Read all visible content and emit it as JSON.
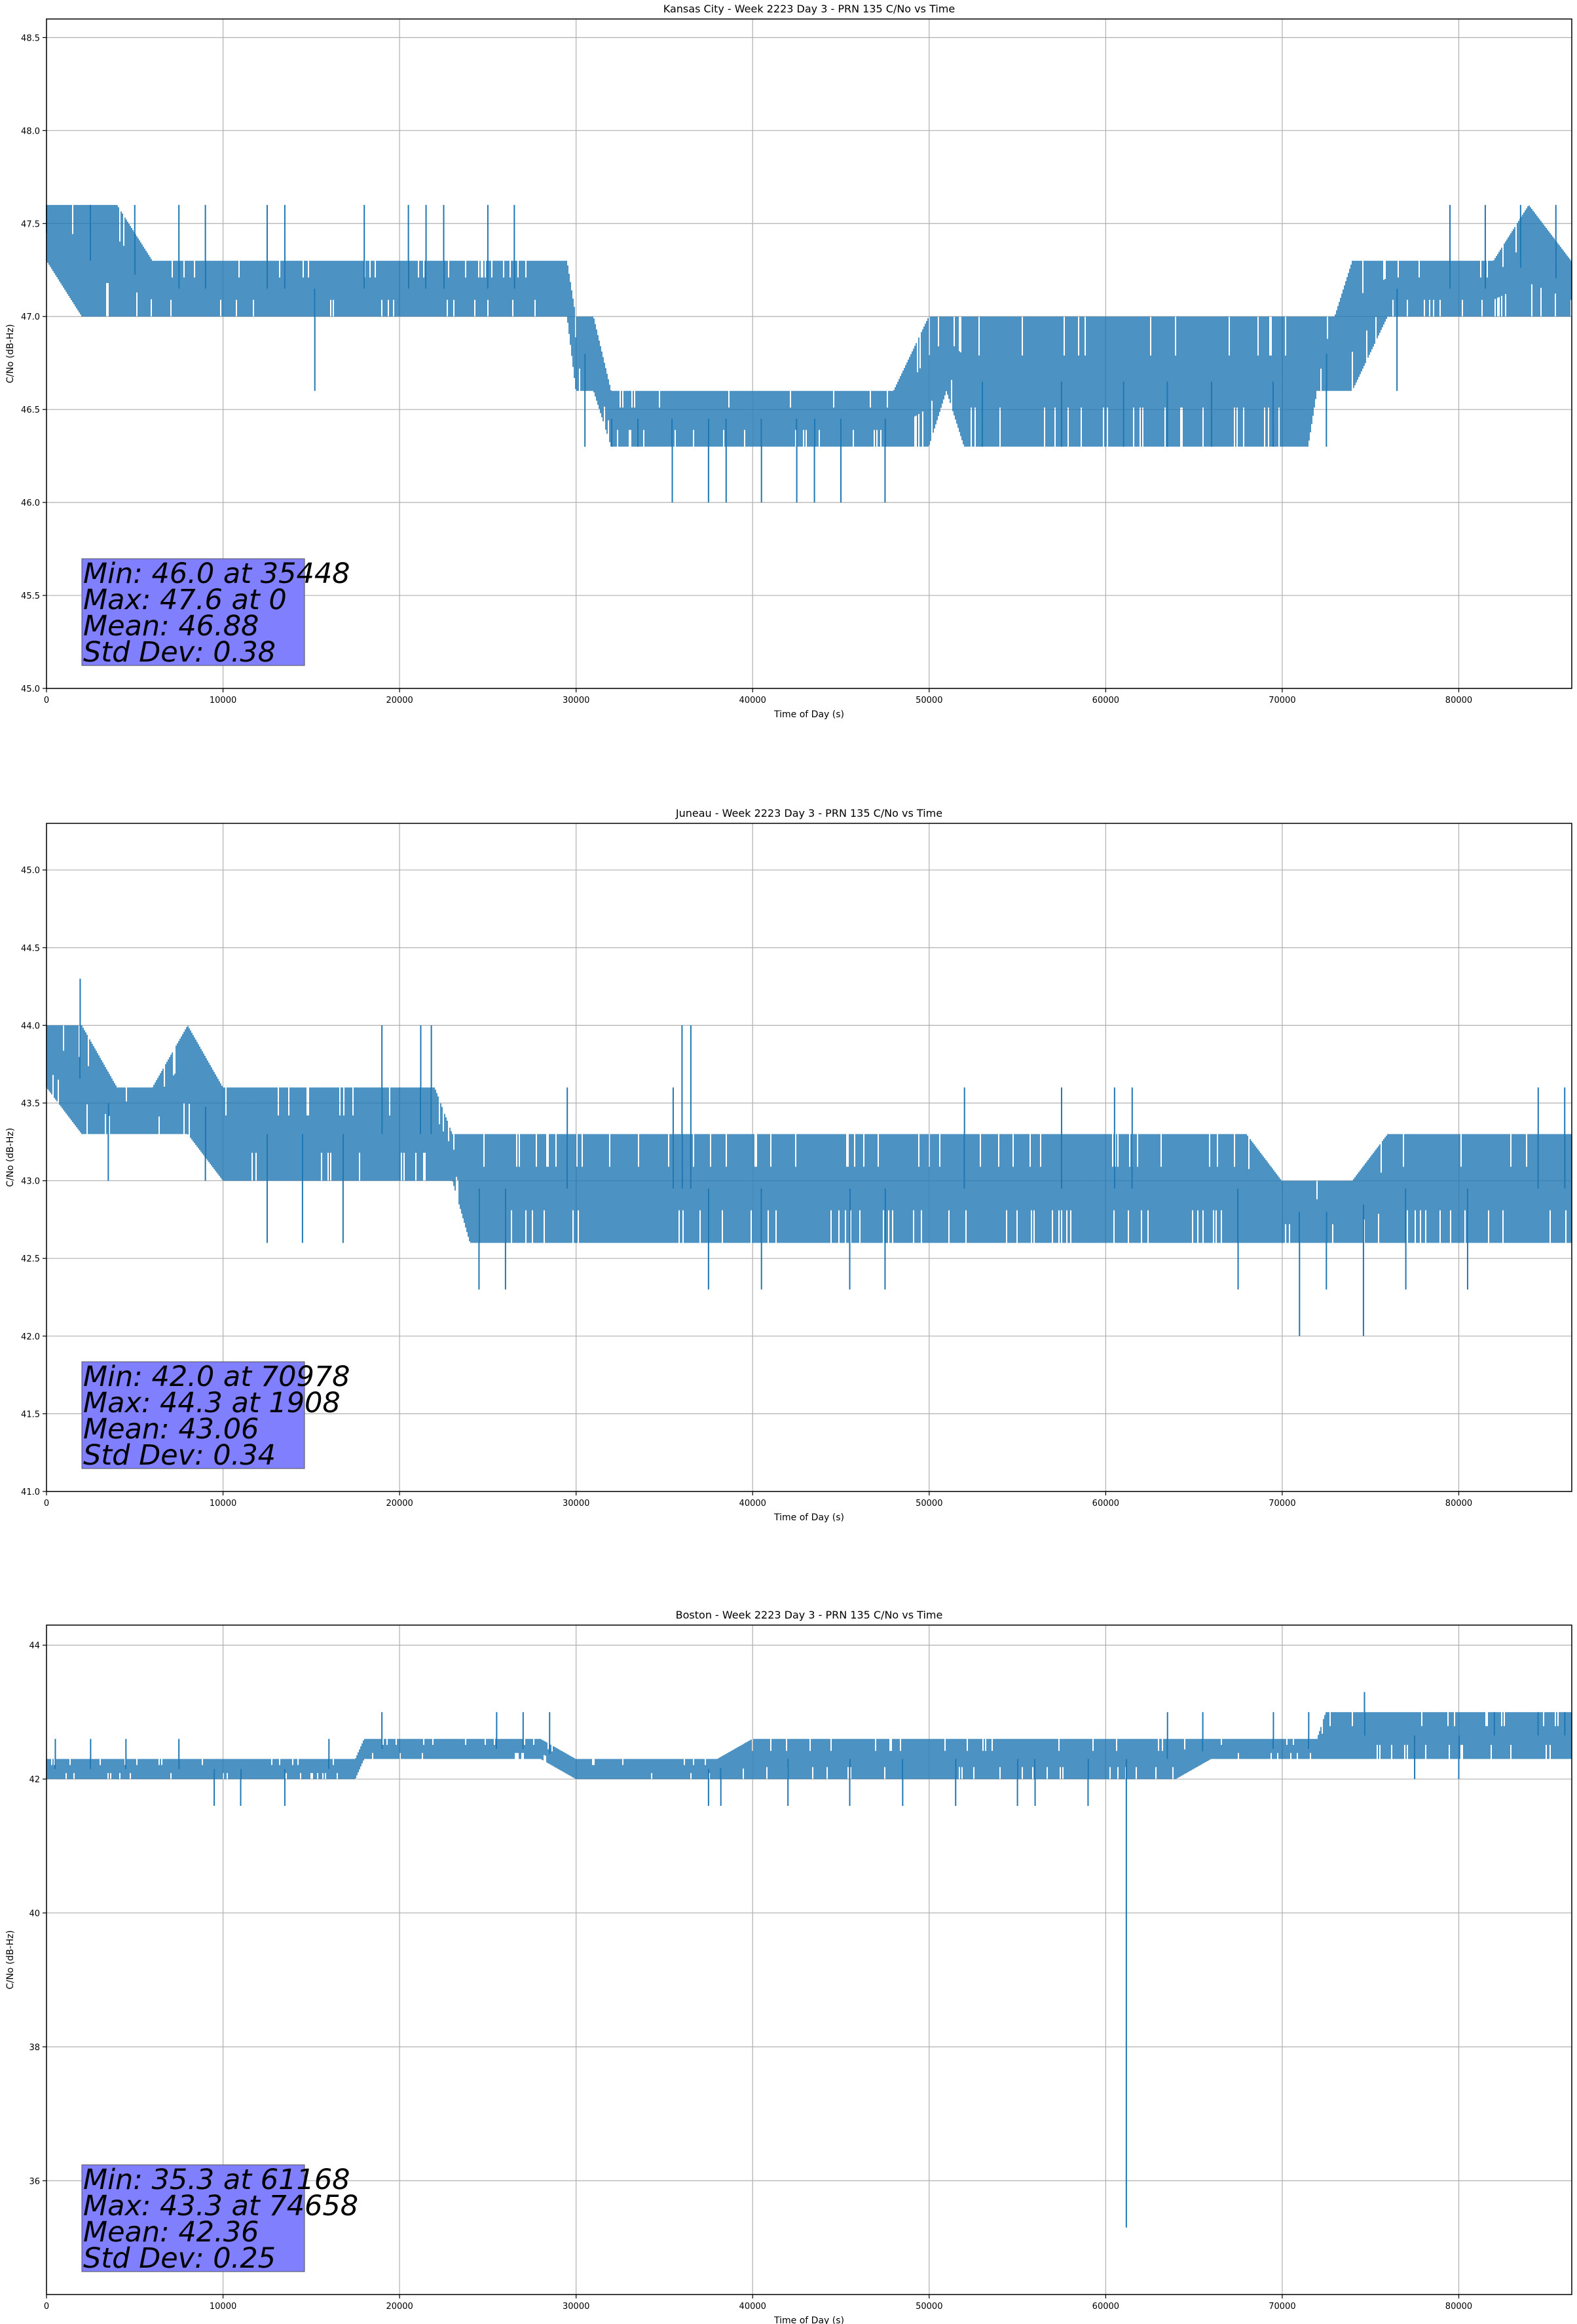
{
  "colors": {
    "line": "#1f77b4",
    "grid": "#b0b0b0",
    "stats_box": "#8080ff"
  },
  "chart_data": [
    {
      "type": "line",
      "title": "Kansas City - Week 2223 Day 3 - PRN 135 C/No vs Time",
      "xlabel": "Time of Day (s)",
      "ylabel": "C/No (dB-Hz)",
      "xlim": [
        0,
        86400
      ],
      "ylim": [
        45.0,
        48.6
      ],
      "xticks": [
        0,
        10000,
        20000,
        30000,
        40000,
        50000,
        60000,
        70000,
        80000
      ],
      "yticks": [
        "45.0",
        "45.5",
        "46.0",
        "46.5",
        "47.0",
        "47.5",
        "48.0",
        "48.5"
      ],
      "grid": true,
      "stats": [
        "Min: 46.0 at 35448",
        "Max: 47.6 at 0",
        "Mean: 46.88",
        "Std Dev: 0.38"
      ],
      "series": [
        {
          "x": [
            0,
            2000,
            4000,
            6000,
            8000,
            10000,
            12000,
            14000,
            16000,
            18000,
            20000,
            22000,
            24000,
            26000,
            28000,
            29500,
            30000,
            31000,
            32000,
            34000,
            36000,
            38000,
            40000,
            42000,
            44000,
            46000,
            48000,
            50000,
            51000,
            52000,
            54000,
            56000,
            58000,
            60000,
            62000,
            64000,
            66000,
            68000,
            70000,
            71500,
            72000,
            73000,
            74000,
            76000,
            78000,
            80000,
            82000,
            84000,
            86400
          ],
          "band_lo": [
            47.3,
            47.0,
            47.0,
            47.0,
            47.0,
            47.0,
            47.0,
            47.0,
            47.0,
            47.0,
            47.0,
            47.0,
            47.0,
            47.0,
            47.0,
            47.0,
            46.6,
            46.6,
            46.3,
            46.3,
            46.3,
            46.3,
            46.3,
            46.3,
            46.3,
            46.3,
            46.3,
            46.3,
            46.6,
            46.3,
            46.3,
            46.3,
            46.3,
            46.3,
            46.3,
            46.3,
            46.3,
            46.3,
            46.3,
            46.3,
            46.6,
            46.6,
            46.6,
            47.0,
            47.0,
            47.0,
            47.0,
            47.0,
            47.0
          ],
          "band_hi": [
            47.6,
            47.6,
            47.6,
            47.3,
            47.3,
            47.3,
            47.3,
            47.3,
            47.3,
            47.3,
            47.3,
            47.3,
            47.3,
            47.3,
            47.3,
            47.3,
            47.0,
            47.0,
            46.6,
            46.6,
            46.6,
            46.6,
            46.6,
            46.6,
            46.6,
            46.6,
            46.6,
            47.0,
            47.0,
            47.0,
            47.0,
            47.0,
            47.0,
            47.0,
            47.0,
            47.0,
            47.0,
            47.0,
            47.0,
            47.0,
            47.0,
            47.0,
            47.3,
            47.3,
            47.3,
            47.3,
            47.3,
            47.6,
            47.3
          ],
          "outliers_x": [
            0,
            2500,
            5000,
            7500,
            9000,
            12500,
            13500,
            15200,
            18000,
            20500,
            21500,
            22500,
            25000,
            26500,
            30500,
            32000,
            33500,
            35448,
            37500,
            38500,
            40500,
            42500,
            43500,
            45000,
            47500,
            53000,
            57500,
            61000,
            63500,
            66000,
            69500,
            72500,
            76500,
            79500,
            81500,
            83500,
            85500
          ],
          "outliers_y": [
            47.6,
            47.6,
            47.6,
            47.6,
            47.6,
            47.6,
            47.6,
            46.6,
            47.6,
            47.6,
            47.6,
            47.6,
            47.6,
            47.6,
            46.3,
            46.3,
            46.3,
            46.0,
            46.0,
            46.0,
            46.0,
            46.0,
            46.0,
            46.0,
            46.0,
            46.3,
            46.3,
            46.3,
            46.3,
            46.3,
            46.3,
            46.3,
            46.6,
            47.6,
            47.6,
            47.6,
            47.6
          ]
        }
      ]
    },
    {
      "type": "line",
      "title": "Juneau - Week 2223 Day 3 - PRN 135 C/No vs Time",
      "xlabel": "Time of Day (s)",
      "ylabel": "C/No (dB-Hz)",
      "xlim": [
        0,
        86400
      ],
      "ylim": [
        41.0,
        45.3
      ],
      "xticks": [
        0,
        10000,
        20000,
        30000,
        40000,
        50000,
        60000,
        70000,
        80000
      ],
      "yticks": [
        "41.0",
        "41.5",
        "42.0",
        "42.5",
        "43.0",
        "43.5",
        "44.0",
        "44.5",
        "45.0"
      ],
      "grid": true,
      "stats": [
        "Min: 42.0 at 70978",
        "Max: 44.3 at 1908",
        "Mean: 43.06",
        "Std Dev: 0.34"
      ],
      "series": [
        {
          "x": [
            0,
            2000,
            4000,
            6000,
            8000,
            10000,
            12000,
            14000,
            16000,
            18000,
            20000,
            22000,
            23000,
            24000,
            26000,
            28000,
            30000,
            32000,
            34000,
            36000,
            38000,
            40000,
            42000,
            44000,
            46000,
            48000,
            50000,
            52000,
            54000,
            56000,
            58000,
            60000,
            62000,
            64000,
            66000,
            68000,
            70000,
            72000,
            74000,
            76000,
            78000,
            80000,
            82000,
            84000,
            86400
          ],
          "band_lo": [
            43.6,
            43.3,
            43.3,
            43.3,
            43.3,
            43.0,
            43.0,
            43.0,
            43.0,
            43.0,
            43.0,
            43.0,
            43.0,
            42.6,
            42.6,
            42.6,
            42.6,
            42.6,
            42.6,
            42.6,
            42.6,
            42.6,
            42.6,
            42.6,
            42.6,
            42.6,
            42.6,
            42.6,
            42.6,
            42.6,
            42.6,
            42.6,
            42.6,
            42.6,
            42.6,
            42.6,
            42.6,
            42.6,
            42.6,
            42.6,
            42.6,
            42.6,
            42.6,
            42.6,
            42.6
          ],
          "band_hi": [
            44.0,
            44.0,
            43.6,
            43.6,
            44.0,
            43.6,
            43.6,
            43.6,
            43.6,
            43.6,
            43.6,
            43.6,
            43.3,
            43.3,
            43.3,
            43.3,
            43.3,
            43.3,
            43.3,
            43.3,
            43.3,
            43.3,
            43.3,
            43.3,
            43.3,
            43.3,
            43.3,
            43.3,
            43.3,
            43.3,
            43.3,
            43.3,
            43.3,
            43.3,
            43.3,
            43.3,
            43.0,
            43.0,
            43.0,
            43.3,
            43.3,
            43.3,
            43.3,
            43.3,
            43.3
          ],
          "outliers_x": [
            1908,
            3500,
            9000,
            12500,
            14500,
            16800,
            19000,
            21200,
            21800,
            24500,
            26000,
            29500,
            35500,
            36000,
            36500,
            37500,
            40500,
            45500,
            47500,
            52000,
            57500,
            60500,
            61500,
            67500,
            70978,
            72500,
            74600,
            77000,
            80500,
            84500,
            86000
          ],
          "outliers_y": [
            44.3,
            43.0,
            43.0,
            42.6,
            42.6,
            42.6,
            44.0,
            44.0,
            44.0,
            42.3,
            42.3,
            43.6,
            43.6,
            44.0,
            44.0,
            42.3,
            42.3,
            42.3,
            42.3,
            43.6,
            43.6,
            43.6,
            43.6,
            42.3,
            42.0,
            42.3,
            42.0,
            42.3,
            42.3,
            43.6,
            43.6
          ]
        }
      ]
    },
    {
      "type": "line",
      "title": "Boston - Week 2223 Day 3 - PRN 135 C/No vs Time",
      "xlabel": "Time of Day (s)",
      "ylabel": "C/No (dB-Hz)",
      "xlim": [
        0,
        86400
      ],
      "ylim": [
        34.3,
        44.3
      ],
      "xticks": [
        0,
        10000,
        20000,
        30000,
        40000,
        50000,
        60000,
        70000,
        80000
      ],
      "yticks": [
        "36",
        "38",
        "40",
        "42",
        "44"
      ],
      "grid": true,
      "stats": [
        "Min: 35.3 at 61168",
        "Max: 43.3 at 74658",
        "Mean: 42.36",
        "Std Dev: 0.25"
      ],
      "series": [
        {
          "x": [
            0,
            2000,
            4000,
            6000,
            8000,
            10000,
            12000,
            14000,
            16000,
            17500,
            18000,
            20000,
            22000,
            24000,
            26000,
            28000,
            30000,
            32000,
            34000,
            36000,
            38000,
            40000,
            42000,
            44000,
            46000,
            48000,
            50000,
            52000,
            54000,
            56000,
            58000,
            60000,
            62000,
            64000,
            66000,
            68000,
            70000,
            72000,
            72500,
            74000,
            76000,
            78000,
            80000,
            82000,
            84000,
            86400
          ],
          "band_lo": [
            42.0,
            42.0,
            42.0,
            42.0,
            42.0,
            42.0,
            42.0,
            42.0,
            42.0,
            42.0,
            42.3,
            42.3,
            42.3,
            42.3,
            42.3,
            42.3,
            42.0,
            42.0,
            42.0,
            42.0,
            42.0,
            42.0,
            42.0,
            42.0,
            42.0,
            42.0,
            42.0,
            42.0,
            42.0,
            42.0,
            42.0,
            42.0,
            42.0,
            42.0,
            42.3,
            42.3,
            42.3,
            42.3,
            42.3,
            42.3,
            42.3,
            42.3,
            42.3,
            42.3,
            42.3,
            42.3
          ],
          "band_hi": [
            42.3,
            42.3,
            42.3,
            42.3,
            42.3,
            42.3,
            42.3,
            42.3,
            42.3,
            42.3,
            42.6,
            42.6,
            42.6,
            42.6,
            42.6,
            42.6,
            42.3,
            42.3,
            42.3,
            42.3,
            42.3,
            42.6,
            42.6,
            42.6,
            42.6,
            42.6,
            42.6,
            42.6,
            42.6,
            42.6,
            42.6,
            42.6,
            42.6,
            42.6,
            42.6,
            42.6,
            42.6,
            42.6,
            43.0,
            43.0,
            43.0,
            43.0,
            43.0,
            43.0,
            43.0,
            43.0
          ],
          "outliers_x": [
            500,
            2500,
            4500,
            7500,
            9500,
            11000,
            13500,
            16000,
            19000,
            25500,
            27000,
            28500,
            37500,
            38200,
            42000,
            45500,
            48500,
            51500,
            55000,
            56000,
            59000,
            61168,
            63500,
            65500,
            69500,
            71500,
            74658,
            77500,
            80000,
            82000,
            84500,
            86000
          ],
          "outliers_y": [
            42.6,
            42.6,
            42.6,
            42.6,
            41.6,
            41.6,
            41.6,
            42.6,
            43.0,
            43.0,
            43.0,
            43.0,
            41.6,
            41.6,
            41.6,
            41.6,
            41.6,
            41.6,
            41.6,
            41.6,
            41.6,
            35.3,
            43.0,
            43.0,
            43.0,
            43.0,
            43.3,
            42.0,
            42.0,
            43.0,
            43.0,
            43.0
          ]
        }
      ]
    }
  ]
}
